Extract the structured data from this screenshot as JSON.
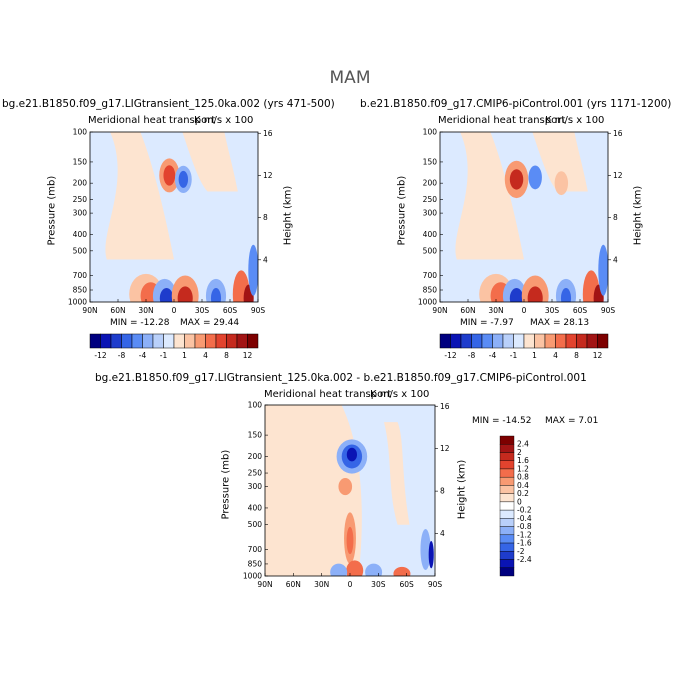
{
  "figure": {
    "season": "MAM",
    "colors": {
      "neg": [
        "#00007f",
        "#0a14b4",
        "#1e3ccc",
        "#3565e6",
        "#5a8cf5",
        "#8cb0f8",
        "#b9d0fa",
        "#dceaff"
      ],
      "pos": [
        "#fde4d0",
        "#fbc3a3",
        "#f89a72",
        "#f36d4b",
        "#e2432e",
        "#c52a1e",
        "#a21414",
        "#7d0000"
      ],
      "bg_blue": "#dceaff",
      "bg_peach": "#fde4d0"
    }
  },
  "chart_data": [
    {
      "type": "heatmap",
      "id": "panel_a",
      "run_title": "bg.e21.B1850.f09_g17.LIGtransient_125.0ka.002 (yrs 471-500)",
      "title": "Meridional heat transport",
      "units": "K m/s x 100",
      "ylabel": "Pressure (mb)",
      "y2label": "Height (km)",
      "xticks": [
        "90N",
        "60N",
        "30N",
        "0",
        "30S",
        "60S",
        "90S"
      ],
      "yticks": [
        "100",
        "150",
        "200",
        "250",
        "300",
        "400",
        "500",
        "700",
        "850",
        "1000"
      ],
      "y2ticks": [
        "16",
        "12",
        "8",
        "4"
      ],
      "xlim": [
        90,
        -90
      ],
      "ylim": [
        1000,
        100
      ],
      "min_label": "MIN = -12.28",
      "max_label": "MAX =  29.44",
      "min": -12.28,
      "max": 29.44,
      "colorbar_levels": [
        "-12",
        "-8",
        "-4",
        "-1",
        "1",
        "4",
        "8",
        "12"
      ]
    },
    {
      "type": "heatmap",
      "id": "panel_b",
      "run_title": "b.e21.B1850.f09_g17.CMIP6-piControl.001 (yrs 1171-1200)",
      "title": "Meridional heat transport",
      "units": "K m/s x 100",
      "ylabel": "Pressure (mb)",
      "y2label": "Height (km)",
      "xticks": [
        "90N",
        "60N",
        "30N",
        "0",
        "30S",
        "60S",
        "90S"
      ],
      "yticks": [
        "100",
        "150",
        "200",
        "250",
        "300",
        "400",
        "500",
        "700",
        "850",
        "1000"
      ],
      "y2ticks": [
        "16",
        "12",
        "8",
        "4"
      ],
      "xlim": [
        90,
        -90
      ],
      "ylim": [
        1000,
        100
      ],
      "min_label": "MIN =  -7.97",
      "max_label": "MAX =  28.13",
      "min": -7.97,
      "max": 28.13,
      "colorbar_levels": [
        "-12",
        "-8",
        "-4",
        "-1",
        "1",
        "4",
        "8",
        "12"
      ]
    },
    {
      "type": "heatmap",
      "id": "panel_diff",
      "run_title": "bg.e21.B1850.f09_g17.LIGtransient_125.0ka.002 - b.e21.B1850.f09_g17.CMIP6-piControl.001",
      "title": "Meridional heat transport",
      "units": "K m/s x 100",
      "ylabel": "Pressure (mb)",
      "y2label": "Height (km)",
      "xticks": [
        "90N",
        "60N",
        "30N",
        "0",
        "30S",
        "60S",
        "90S"
      ],
      "yticks": [
        "100",
        "150",
        "200",
        "250",
        "300",
        "400",
        "500",
        "700",
        "850",
        "1000"
      ],
      "y2ticks": [
        "16",
        "12",
        "8",
        "4"
      ],
      "xlim": [
        90,
        -90
      ],
      "ylim": [
        1000,
        100
      ],
      "min_label": "MIN = -14.52",
      "max_label": "MAX =   7.01",
      "min": -14.52,
      "max": 7.01,
      "colorbar_levels": [
        "2.4",
        "2",
        "1.6",
        "1.2",
        "0.8",
        "0.4",
        "0.2",
        "0",
        "-0.2",
        "-0.4",
        "-0.8",
        "-1.2",
        "-1.6",
        "-2",
        "-2.4"
      ]
    }
  ]
}
